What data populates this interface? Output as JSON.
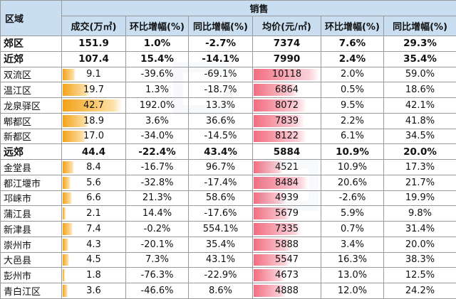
{
  "header": {
    "region": "区域",
    "sales": "销售",
    "columns": [
      "成交(万㎡)",
      "环比增幅(%)",
      "同比增幅(%)",
      "均价(元/㎡)",
      "环比增幅(%)",
      "同比增幅(%)"
    ]
  },
  "rows": [
    {
      "name": "郊区",
      "bold": true,
      "volume": "151.9",
      "vol_mom": "1.0%",
      "vol_yoy": "-2.7%",
      "price": "7374",
      "price_mom": "7.6%",
      "price_yoy": "29.3%"
    },
    {
      "name": "近郊",
      "bold": true,
      "volume": "107.4",
      "vol_mom": "15.4%",
      "vol_yoy": "-14.1%",
      "price": "7990",
      "price_mom": "2.4%",
      "price_yoy": "35.4%"
    },
    {
      "name": "双流区",
      "volume": "9.1",
      "vol_mom": "-39.6%",
      "vol_yoy": "-69.1%",
      "price": "10118",
      "price_mom": "2.0%",
      "price_yoy": "59.0%"
    },
    {
      "name": "温江区",
      "volume": "19.7",
      "vol_mom": "1.3%",
      "vol_yoy": "-18.7%",
      "price": "6864",
      "price_mom": "0.5%",
      "price_yoy": "18.6%"
    },
    {
      "name": "龙泉驿区",
      "volume": "42.7",
      "vol_mom": "192.0%",
      "vol_yoy": "13.3%",
      "price": "8072",
      "price_mom": "9.5%",
      "price_yoy": "42.1%"
    },
    {
      "name": "郫都区",
      "volume": "18.9",
      "vol_mom": "3.6%",
      "vol_yoy": "36.6%",
      "price": "7839",
      "price_mom": "2.2%",
      "price_yoy": "41.8%"
    },
    {
      "name": "新都区",
      "volume": "17.0",
      "vol_mom": "-34.0%",
      "vol_yoy": "-14.5%",
      "price": "8122",
      "price_mom": "6.1%",
      "price_yoy": "34.5%"
    },
    {
      "name": "远郊",
      "bold": true,
      "volume": "44.4",
      "vol_mom": "-22.4%",
      "vol_yoy": "43.4%",
      "price": "5884",
      "price_mom": "10.9%",
      "price_yoy": "20.0%"
    },
    {
      "name": "金堂县",
      "volume": "8.4",
      "vol_mom": "-16.7%",
      "vol_yoy": "96.7%",
      "price": "4521",
      "price_mom": "10.9%",
      "price_yoy": "17.3%"
    },
    {
      "name": "都江堰市",
      "volume": "5.6",
      "vol_mom": "-32.8%",
      "vol_yoy": "-17.4%",
      "price": "8484",
      "price_mom": "20.6%",
      "price_yoy": "21.7%"
    },
    {
      "name": "邛崃市",
      "volume": "6.6",
      "vol_mom": "21.3%",
      "vol_yoy": "58.6%",
      "price": "4939",
      "price_mom": "-2.6%",
      "price_yoy": "19.9%"
    },
    {
      "name": "蒲江县",
      "volume": "2.1",
      "vol_mom": "14.4%",
      "vol_yoy": "-17.6%",
      "price": "5679",
      "price_mom": "5.9%",
      "price_yoy": "9.8%"
    },
    {
      "name": "新津县",
      "volume": "7.4",
      "vol_mom": "-0.2%",
      "vol_yoy": "554.1%",
      "price": "7335",
      "price_mom": "0.7%",
      "price_yoy": "31.4%"
    },
    {
      "name": "崇州市",
      "volume": "4.3",
      "vol_mom": "-20.1%",
      "vol_yoy": "35.4%",
      "price": "5888",
      "price_mom": "3.4%",
      "price_yoy": "20.0%"
    },
    {
      "name": "大邑县",
      "volume": "4.5",
      "vol_mom": "7.3%",
      "vol_yoy": "43.1%",
      "price": "5547",
      "price_mom": "16.3%",
      "price_yoy": "38.3%"
    },
    {
      "name": "彭州市",
      "volume": "1.8",
      "vol_mom": "-76.3%",
      "vol_yoy": "-22.9%",
      "price": "4673",
      "price_mom": "13.0%",
      "price_yoy": "12.5%"
    },
    {
      "name": "青白江区",
      "volume": "3.6",
      "vol_mom": "-46.6%",
      "vol_yoy": "8.6%",
      "price": "4888",
      "price_mom": "12.0%",
      "price_yoy": "24.2%"
    }
  ],
  "data_bars": {
    "volume_max": 45,
    "price_max": 10200,
    "colors": {
      "volume": "#f3a21a",
      "price": "#f26d80",
      "header": "#c9dff1"
    }
  }
}
